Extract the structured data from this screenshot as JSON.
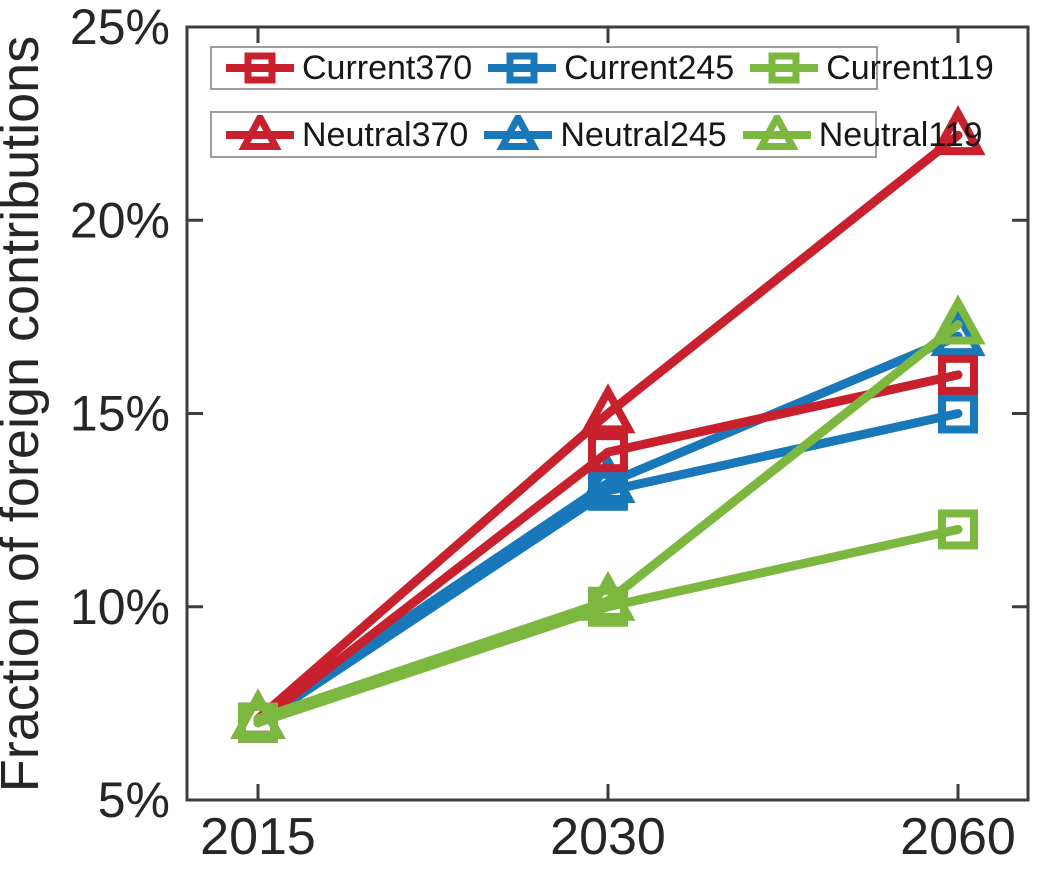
{
  "figure": {
    "background": "#ffffff",
    "axis_color": "#3d3d3d",
    "text_color": "#262626",
    "legend_border_color": "#9e9e9e"
  },
  "chart_data": {
    "type": "line",
    "title": "",
    "xlabel": "",
    "ylabel": "Fraction of foreign contributions",
    "x_categories": [
      "2015",
      "2030",
      "2060"
    ],
    "ylim": [
      5,
      25
    ],
    "yticks": [
      5,
      10,
      15,
      20,
      25
    ],
    "ytick_labels": [
      "5%",
      "10%",
      "15%",
      "20%",
      "25%"
    ],
    "grid": false,
    "box": true,
    "legend": {
      "position": "top-inside",
      "rows": [
        [
          "Current370",
          "Current245",
          "Current119"
        ],
        [
          "Neutral370",
          "Neutral245",
          "Neutral119"
        ]
      ]
    },
    "series": [
      {
        "name": "Current370",
        "color": "#c9202e",
        "marker": "square",
        "values": [
          7.0,
          14.0,
          16.0
        ]
      },
      {
        "name": "Current245",
        "color": "#1878b9",
        "marker": "square",
        "values": [
          7.0,
          13.0,
          15.0
        ]
      },
      {
        "name": "Current119",
        "color": "#7cb83f",
        "marker": "square",
        "values": [
          7.0,
          10.0,
          12.0
        ]
      },
      {
        "name": "Neutral370",
        "color": "#c9202e",
        "marker": "triangle",
        "values": [
          7.1,
          15.0,
          22.2
        ]
      },
      {
        "name": "Neutral245",
        "color": "#1878b9",
        "marker": "triangle",
        "values": [
          7.1,
          13.2,
          17.0
        ]
      },
      {
        "name": "Neutral119",
        "color": "#7cb83f",
        "marker": "triangle",
        "values": [
          7.1,
          10.15,
          17.3
        ]
      }
    ]
  }
}
